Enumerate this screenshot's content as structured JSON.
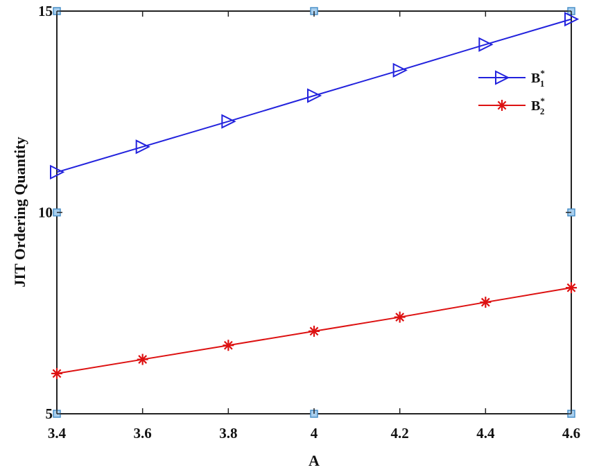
{
  "chart_data": {
    "type": "line",
    "title": "",
    "xlabel": "A",
    "ylabel": "JIT Ordering Quantity",
    "xlim": [
      3.4,
      4.6
    ],
    "ylim": [
      5,
      15
    ],
    "grid": false,
    "legend_position": "top-right",
    "x": [
      3.4,
      3.6,
      3.8,
      4.0,
      4.2,
      4.4,
      4.6
    ],
    "x_tick_labels": [
      "3.4",
      "3.6",
      "3.8",
      "4",
      "4.2",
      "4.4",
      "4.6"
    ],
    "y_ticks": [
      5,
      10,
      15
    ],
    "y_tick_labels": [
      "5",
      "10",
      "15"
    ],
    "series": [
      {
        "name": "B",
        "name_sub": "1",
        "name_sup": "*",
        "color": "#2222dd",
        "marker": "triangle-right",
        "values": [
          11.0,
          11.63,
          12.26,
          12.9,
          13.53,
          14.17,
          14.8
        ]
      },
      {
        "name": "B",
        "name_sub": "2",
        "name_sup": "*",
        "color": "#dd1111",
        "marker": "asterisk",
        "values": [
          6.0,
          6.35,
          6.7,
          7.05,
          7.4,
          7.77,
          8.13
        ]
      }
    ],
    "corner_marker_color": "#4a90c8"
  }
}
